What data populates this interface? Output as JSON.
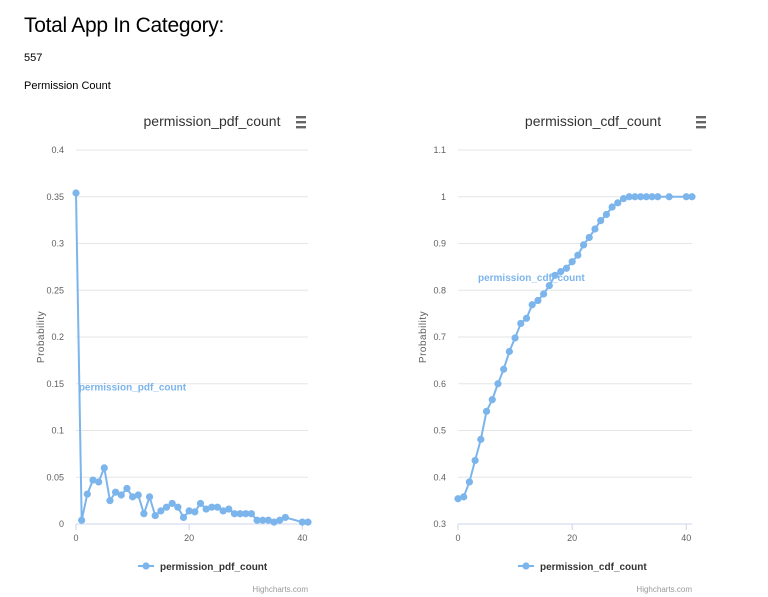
{
  "header": {
    "title": "Total App In Category:",
    "total_value": "557",
    "section_label": "Permission Count"
  },
  "menu_icon": "hamburger-menu-icon",
  "credits": "Highcharts.com",
  "colors": {
    "series": "#7cb5ec",
    "grid": "#e6e6e6",
    "axis_text": "#606060",
    "title": "#333333"
  },
  "chart_data": [
    {
      "type": "line",
      "title": "permission_pdf_count",
      "xlabel": "",
      "ylabel": "Probability",
      "xlim": [
        0,
        41
      ],
      "ylim": [
        0,
        0.4
      ],
      "x_ticks": [
        0,
        20,
        40
      ],
      "y_ticks": [
        "0",
        "0.05",
        "0.1",
        "0.15",
        "0.2",
        "0.25",
        "0.3",
        "0.35",
        "0.4"
      ],
      "y_tick_values": [
        0,
        0.05,
        0.1,
        0.15,
        0.2,
        0.25,
        0.3,
        0.35,
        0.4
      ],
      "grid": true,
      "legend": "bottom-center",
      "series": [
        {
          "name": "permission_pdf_count",
          "label_anchor_x": 0.5,
          "label_anchor_y": 0.143,
          "x": [
            0,
            1,
            2,
            3,
            4,
            5,
            6,
            7,
            8,
            9,
            10,
            11,
            12,
            13,
            14,
            15,
            16,
            17,
            18,
            19,
            20,
            21,
            22,
            23,
            24,
            25,
            26,
            27,
            28,
            29,
            30,
            31,
            32,
            33,
            34,
            35,
            36,
            37,
            40,
            41
          ],
          "values": [
            0.354,
            0.004,
            0.032,
            0.047,
            0.045,
            0.06,
            0.025,
            0.034,
            0.031,
            0.038,
            0.029,
            0.031,
            0.011,
            0.029,
            0.009,
            0.014,
            0.018,
            0.022,
            0.018,
            0.007,
            0.014,
            0.013,
            0.022,
            0.016,
            0.018,
            0.018,
            0.014,
            0.016,
            0.011,
            0.011,
            0.011,
            0.011,
            0.004,
            0.004,
            0.004,
            0.002,
            0.004,
            0.007,
            0.002,
            0.002
          ]
        }
      ]
    },
    {
      "type": "line",
      "title": "permission_cdf_count",
      "xlabel": "",
      "ylabel": "Probability",
      "xlim": [
        0,
        41
      ],
      "ylim": [
        0.3,
        1.1
      ],
      "x_ticks": [
        0,
        20,
        40
      ],
      "y_ticks": [
        "0.3",
        "0.4",
        "0.5",
        "0.6",
        "0.7",
        "0.8",
        "0.9",
        "1",
        "1.1"
      ],
      "y_tick_values": [
        0.3,
        0.4,
        0.5,
        0.6,
        0.7,
        0.8,
        0.9,
        1.0,
        1.1
      ],
      "grid": true,
      "legend": "bottom-center",
      "series": [
        {
          "name": "permission_cdf_count",
          "label_anchor_x": 3.5,
          "label_anchor_y": 0.82,
          "x": [
            0,
            1,
            2,
            3,
            4,
            5,
            6,
            7,
            8,
            9,
            10,
            11,
            12,
            13,
            14,
            15,
            16,
            17,
            18,
            19,
            20,
            21,
            22,
            23,
            24,
            25,
            26,
            27,
            28,
            29,
            30,
            31,
            32,
            33,
            34,
            35,
            37,
            40,
            41
          ],
          "values": [
            0.354,
            0.358,
            0.39,
            0.436,
            0.481,
            0.541,
            0.566,
            0.6,
            0.631,
            0.669,
            0.698,
            0.729,
            0.74,
            0.769,
            0.778,
            0.792,
            0.81,
            0.832,
            0.84,
            0.847,
            0.861,
            0.875,
            0.897,
            0.913,
            0.931,
            0.949,
            0.962,
            0.978,
            0.987,
            0.996,
            1.0,
            1.0,
            1.0,
            1.0,
            1.0,
            1.0,
            1.0,
            1.0,
            1.0
          ]
        }
      ]
    }
  ]
}
